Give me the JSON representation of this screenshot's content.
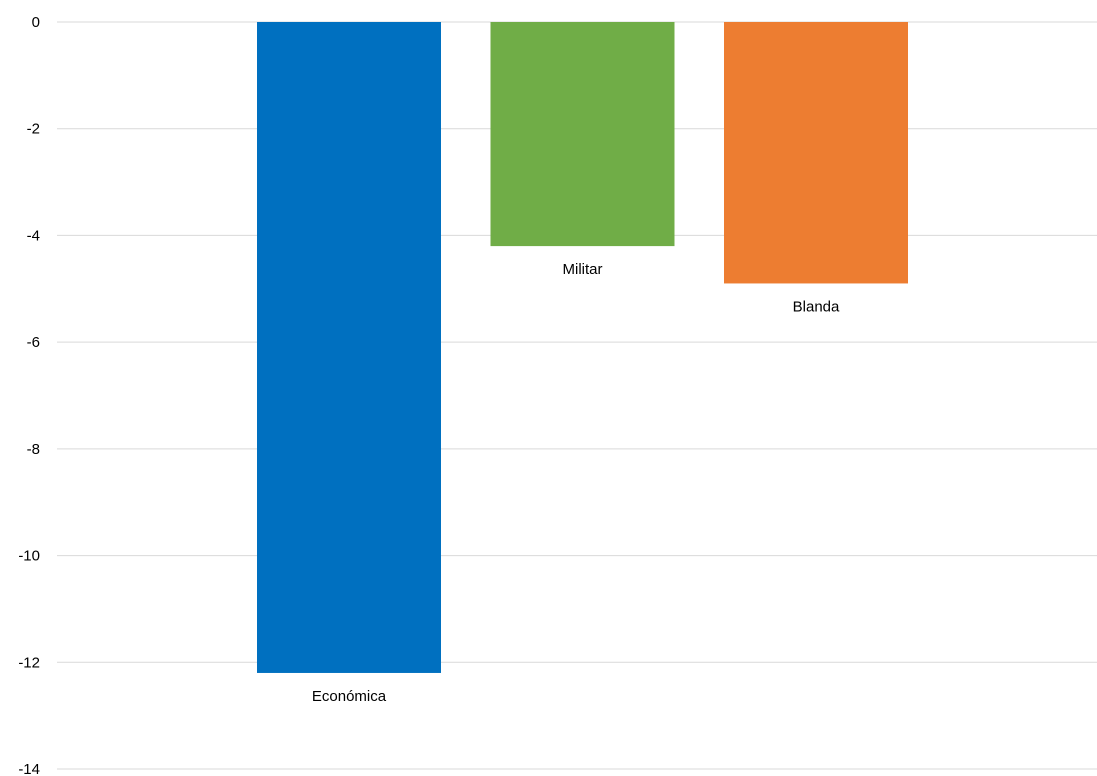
{
  "chart_data": {
    "type": "bar",
    "title": "",
    "xlabel": "",
    "ylabel": "",
    "categories": [
      "Económica",
      "Militar",
      "Blanda"
    ],
    "values": [
      -12.2,
      -4.2,
      -4.9
    ],
    "colors": [
      "#0070c0",
      "#70ad47",
      "#ed7d31"
    ],
    "ylim": [
      -14,
      0
    ],
    "yticks": [
      0,
      -2,
      -4,
      -6,
      -8,
      -10,
      -12,
      -14
    ],
    "grid": true,
    "legend": "none",
    "data_labels": "category names below each bar"
  }
}
